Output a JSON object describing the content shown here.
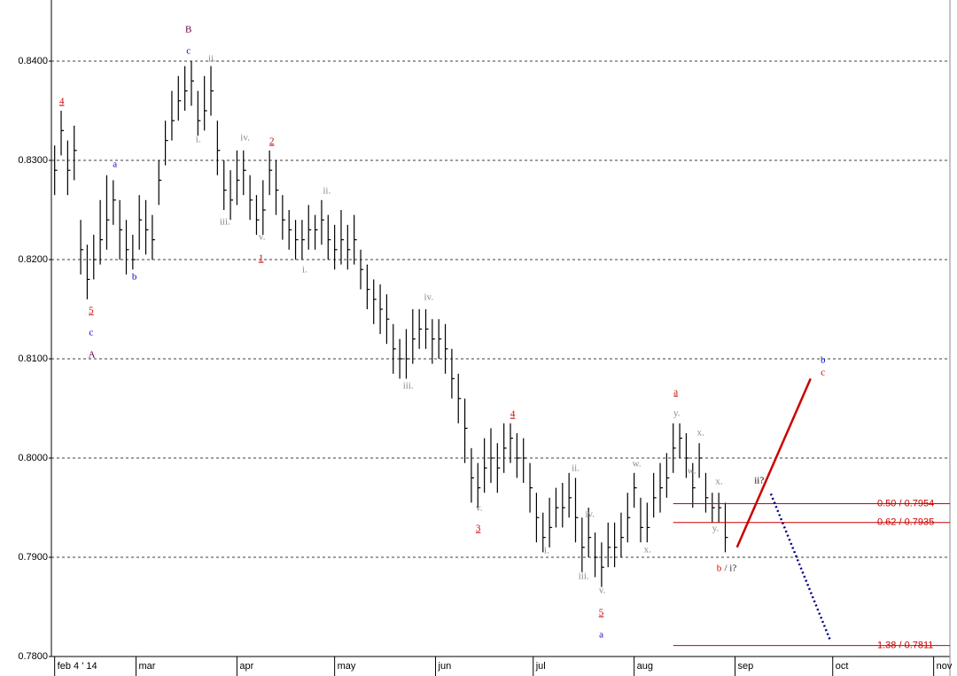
{
  "chart_data": {
    "type": "ohlc",
    "bar_color": "#000000",
    "ylim": [
      0.78,
      0.84616
    ],
    "yticks": [
      {
        "value": 0.78,
        "label": "0.7800"
      },
      {
        "value": 0.79,
        "label": "0.7900"
      },
      {
        "value": 0.8,
        "label": "0.8000"
      },
      {
        "value": 0.81,
        "label": "0.8100"
      },
      {
        "value": 0.82,
        "label": "0.8200"
      },
      {
        "value": 0.83,
        "label": "0.8300"
      },
      {
        "value": 0.84,
        "label": "0.8400"
      }
    ],
    "grid": true,
    "xlim": [
      34,
      310
    ],
    "xticks": [
      {
        "value": 35,
        "label": "feb 4 ' 14"
      },
      {
        "value": 60,
        "label": "mar"
      },
      {
        "value": 91,
        "label": "apr"
      },
      {
        "value": 121,
        "label": "may"
      },
      {
        "value": 152,
        "label": "jun"
      },
      {
        "value": 182,
        "label": "jul"
      },
      {
        "value": 213,
        "label": "aug"
      },
      {
        "value": 244,
        "label": "sep"
      },
      {
        "value": 274,
        "label": "oct"
      },
      {
        "value": 305,
        "label": "nov"
      }
    ],
    "x": [
      35,
      37,
      39,
      41,
      43,
      45,
      47,
      49,
      51,
      53,
      55,
      57,
      59,
      61,
      63,
      65,
      67,
      69,
      71,
      73,
      75,
      77,
      79,
      81,
      83,
      85,
      87,
      89,
      91,
      93,
      95,
      97,
      99,
      101,
      103,
      105,
      107,
      109,
      111,
      113,
      115,
      117,
      119,
      121,
      123,
      125,
      127,
      129,
      131,
      133,
      135,
      137,
      139,
      141,
      143,
      145,
      147,
      149,
      151,
      153,
      155,
      157,
      159,
      161,
      163,
      165,
      167,
      169,
      171,
      173,
      175,
      177,
      179,
      181,
      183,
      185,
      187,
      189,
      191,
      193,
      195,
      197,
      199,
      201,
      203,
      205,
      207,
      209,
      211,
      213,
      215,
      217,
      219,
      221,
      223,
      225,
      227,
      229,
      231,
      233,
      235,
      237,
      239,
      241
    ],
    "high": [
      0.8315,
      0.835,
      0.832,
      0.8335,
      0.824,
      0.8215,
      0.8225,
      0.826,
      0.8285,
      0.828,
      0.826,
      0.824,
      0.8225,
      0.8265,
      0.826,
      0.8245,
      0.83,
      0.834,
      0.837,
      0.8385,
      0.8395,
      0.84,
      0.837,
      0.8385,
      0.8395,
      0.834,
      0.83,
      0.829,
      0.831,
      0.831,
      0.8285,
      0.8265,
      0.828,
      0.831,
      0.83,
      0.8265,
      0.825,
      0.824,
      0.824,
      0.8255,
      0.8245,
      0.826,
      0.8245,
      0.8235,
      0.825,
      0.8235,
      0.8245,
      0.821,
      0.8195,
      0.818,
      0.8175,
      0.8165,
      0.8135,
      0.812,
      0.813,
      0.815,
      0.815,
      0.815,
      0.814,
      0.814,
      0.8135,
      0.811,
      0.8085,
      0.806,
      0.801,
      0.7995,
      0.802,
      0.803,
      0.8015,
      0.8035,
      0.8035,
      0.8025,
      0.802,
      0.7995,
      0.7965,
      0.7945,
      0.796,
      0.797,
      0.7975,
      0.7985,
      0.798,
      0.794,
      0.795,
      0.7925,
      0.7915,
      0.7935,
      0.7935,
      0.7945,
      0.7965,
      0.7985,
      0.796,
      0.7955,
      0.7985,
      0.7995,
      0.8005,
      0.8035,
      0.8035,
      0.8025,
      0.7995,
      0.8015,
      0.7985,
      0.7965,
      0.7965,
      0.7955
    ],
    "low": [
      0.8265,
      0.8305,
      0.8265,
      0.828,
      0.8185,
      0.816,
      0.818,
      0.8195,
      0.821,
      0.8235,
      0.82,
      0.8185,
      0.819,
      0.821,
      0.8205,
      0.82,
      0.8255,
      0.8295,
      0.832,
      0.834,
      0.835,
      0.8355,
      0.8325,
      0.833,
      0.8345,
      0.8285,
      0.825,
      0.824,
      0.8255,
      0.8265,
      0.824,
      0.8225,
      0.8225,
      0.8265,
      0.8245,
      0.822,
      0.821,
      0.82,
      0.82,
      0.821,
      0.821,
      0.8215,
      0.82,
      0.819,
      0.8195,
      0.819,
      0.8195,
      0.817,
      0.815,
      0.8135,
      0.8125,
      0.8115,
      0.8085,
      0.808,
      0.808,
      0.8095,
      0.811,
      0.811,
      0.8095,
      0.81,
      0.8085,
      0.806,
      0.8035,
      0.7995,
      0.7955,
      0.795,
      0.7965,
      0.7975,
      0.7965,
      0.7985,
      0.7995,
      0.798,
      0.7975,
      0.7945,
      0.7915,
      0.7905,
      0.791,
      0.793,
      0.793,
      0.794,
      0.7915,
      0.7885,
      0.79,
      0.788,
      0.787,
      0.789,
      0.789,
      0.79,
      0.7915,
      0.795,
      0.7915,
      0.7915,
      0.794,
      0.7945,
      0.796,
      0.7985,
      0.8,
      0.798,
      0.795,
      0.798,
      0.7945,
      0.7935,
      0.7935,
      0.7905
    ],
    "close": [
      0.829,
      0.833,
      0.829,
      0.831,
      0.821,
      0.818,
      0.82,
      0.822,
      0.824,
      0.826,
      0.823,
      0.821,
      0.82,
      0.824,
      0.823,
      0.822,
      0.828,
      0.832,
      0.834,
      0.836,
      0.837,
      0.838,
      0.834,
      0.835,
      0.837,
      0.831,
      0.827,
      0.826,
      0.828,
      0.829,
      0.826,
      0.824,
      0.825,
      0.829,
      0.827,
      0.824,
      0.823,
      0.822,
      0.822,
      0.823,
      0.823,
      0.824,
      0.822,
      0.821,
      0.822,
      0.821,
      0.822,
      0.819,
      0.817,
      0.816,
      0.815,
      0.814,
      0.811,
      0.81,
      0.81,
      0.812,
      0.813,
      0.813,
      0.812,
      0.812,
      0.811,
      0.808,
      0.806,
      0.803,
      0.798,
      0.797,
      0.799,
      0.8,
      0.799,
      0.801,
      0.802,
      0.8,
      0.8,
      0.797,
      0.794,
      0.792,
      0.793,
      0.795,
      0.795,
      0.796,
      0.794,
      0.791,
      0.792,
      0.79,
      0.789,
      0.791,
      0.791,
      0.792,
      0.794,
      0.797,
      0.793,
      0.793,
      0.796,
      0.797,
      0.798,
      0.801,
      0.802,
      0.8,
      0.797,
      0.8,
      0.796,
      0.795,
      0.795,
      0.792
    ],
    "lines": [
      {
        "color": "#cc0000",
        "style": "solid",
        "x": [
          244.6,
          267.2
        ],
        "y": [
          0.791,
          0.808
        ]
      },
      {
        "color": "#000080",
        "style": "dotted",
        "x": [
          255,
          273.4
        ],
        "y": [
          0.7964,
          0.7815
        ]
      }
    ],
    "levels": [
      {
        "value": 0.7954,
        "label": "0.50 / 0.7954",
        "x_start": 225,
        "color": "#cc0000"
      },
      {
        "value": 0.7935,
        "label": "0.62 / 0.7935",
        "x_start": 225,
        "color": "#cc0000"
      },
      {
        "value": 0.7811,
        "label": "1.38 / 0.7811",
        "x_start": 225,
        "color": "#cc0000"
      }
    ],
    "annotations": [
      {
        "text": "4",
        "color": "#cc0000",
        "underline": true,
        "x": 37.2,
        "y": 0.8359
      },
      {
        "text": "5",
        "color": "#cc0000",
        "underline": true,
        "x": 46.2,
        "y": 0.81482
      },
      {
        "text": "c",
        "color": "#0000cc",
        "x": 46.2,
        "y": 0.81259
      },
      {
        "text": "A",
        "color": "#660044",
        "x": 46.4,
        "y": 0.81036
      },
      {
        "text": "a",
        "color": "#0000cc",
        "x": 53.5,
        "y": 0.82955
      },
      {
        "text": "b",
        "color": "#0000cc",
        "x": 59.5,
        "y": 0.81821
      },
      {
        "text": "B",
        "color": "#660044",
        "x": 76.1,
        "y": 0.84313
      },
      {
        "text": "c",
        "color": "#0000cc",
        "x": 76.1,
        "y": 0.84098
      },
      {
        "text": "ii.",
        "color": "#888888",
        "x": 83.4,
        "y": 0.84018
      },
      {
        "text": "i.",
        "color": "#888888",
        "x": 79.1,
        "y": 0.83205
      },
      {
        "text": "iii.",
        "color": "#888888",
        "x": 87.3,
        "y": 0.82375
      },
      {
        "text": "iv.",
        "color": "#888888",
        "x": 93.5,
        "y": 0.83223
      },
      {
        "text": "2",
        "color": "#cc0000",
        "underline": true,
        "x": 101.7,
        "y": 0.83188
      },
      {
        "text": "v.",
        "color": "#888888",
        "x": 98.7,
        "y": 0.82223
      },
      {
        "text": "1",
        "color": "#cc0000",
        "underline": true,
        "x": 98.4,
        "y": 0.82009
      },
      {
        "text": "ii.",
        "color": "#888888",
        "x": 118.6,
        "y": 0.82688
      },
      {
        "text": "i.",
        "color": "#888888",
        "x": 111.8,
        "y": 0.81893
      },
      {
        "text": "iv.",
        "color": "#888888",
        "x": 149.9,
        "y": 0.81616
      },
      {
        "text": "iii.",
        "color": "#888888",
        "x": 143.6,
        "y": 0.80723
      },
      {
        "text": "4",
        "color": "#cc0000",
        "underline": true,
        "x": 175.7,
        "y": 0.80437
      },
      {
        "text": "v.",
        "color": "#888888",
        "x": 165.4,
        "y": 0.79491
      },
      {
        "text": "3",
        "color": "#cc0000",
        "underline": true,
        "x": 165.1,
        "y": 0.79286
      },
      {
        "text": "ii.",
        "color": "#888888",
        "x": 195.0,
        "y": 0.79893
      },
      {
        "text": "i.",
        "color": "#888888",
        "x": 186.1,
        "y": 0.79063
      },
      {
        "text": "iv.",
        "color": "#888888",
        "x": 199.4,
        "y": 0.79429
      },
      {
        "text": "iii.",
        "color": "#888888",
        "x": 197.5,
        "y": 0.78804
      },
      {
        "text": "v.",
        "color": "#888888",
        "x": 203.2,
        "y": 0.78661
      },
      {
        "text": "5",
        "color": "#cc0000",
        "underline": true,
        "x": 202.9,
        "y": 0.78438
      },
      {
        "text": "a",
        "color": "#0000cc",
        "x": 202.9,
        "y": 0.78214
      },
      {
        "text": "w.",
        "color": "#888888",
        "x": 213.8,
        "y": 0.79938
      },
      {
        "text": "x.",
        "color": "#888888",
        "x": 217.1,
        "y": 0.79071
      },
      {
        "text": "a",
        "color": "#cc0000",
        "underline": true,
        "x": 225.8,
        "y": 0.80661
      },
      {
        "text": "y.",
        "color": "#888888",
        "x": 226.1,
        "y": 0.80446
      },
      {
        "text": "x.",
        "color": "#888888",
        "x": 233.4,
        "y": 0.8025
      },
      {
        "text": "w.",
        "color": "#888888",
        "x": 230.7,
        "y": 0.79866
      },
      {
        "text": "x.",
        "color": "#888888",
        "x": 239.1,
        "y": 0.79759
      },
      {
        "text": "y.",
        "color": "#888888",
        "x": 238.0,
        "y": 0.79286
      },
      {
        "text": "b",
        "color": "#cc0000",
        "x": 239.1,
        "y": 0.78884
      },
      {
        "text": "/ i?",
        "color": "#222222",
        "x": 242.6,
        "y": 0.78884
      },
      {
        "text": "ii?",
        "color": "#000000",
        "x": 251.4,
        "y": 0.79768
      },
      {
        "text": "b",
        "color": "#0000cc",
        "x": 271.0,
        "y": 0.80982
      },
      {
        "text": "c",
        "color": "#cc0000",
        "x": 271.0,
        "y": 0.80857
      }
    ]
  }
}
